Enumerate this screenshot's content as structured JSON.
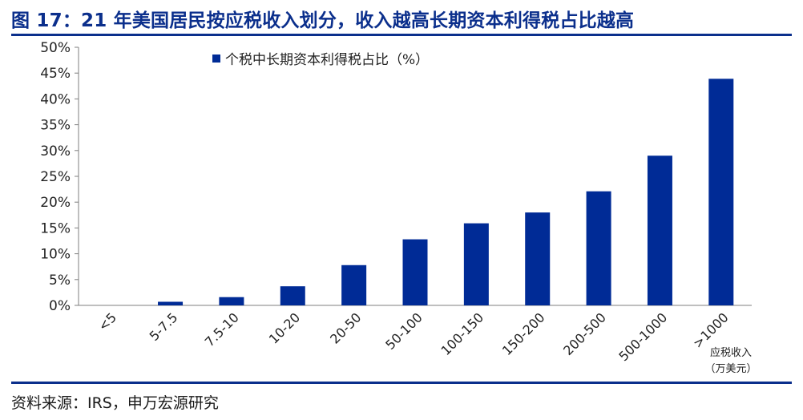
{
  "header": {
    "title": "图 17：21 年美国居民按应税收入划分，收入越高长期资本利得税占比越高"
  },
  "footer": {
    "source": "资料来源：IRS，申万宏源研究"
  },
  "chart_data": {
    "type": "bar",
    "categories": [
      "<5",
      "5-7.5",
      "7.5-10",
      "10-20",
      "20-50",
      "50-100",
      "100-150",
      "150-200",
      "200-500",
      "500-1000",
      ">1000"
    ],
    "series": [
      {
        "name": "个税中长期资本利得税占比（%）",
        "values": [
          0,
          0.7,
          1.6,
          3.7,
          7.8,
          12.8,
          15.9,
          18.0,
          22.1,
          29.0,
          43.9
        ],
        "color": "#002b96"
      }
    ],
    "xlabel": "应税收入（万美元）",
    "xlabel_lines": [
      "应税收入",
      "（万美元）"
    ],
    "ylabel": "",
    "ylim": [
      0,
      50
    ],
    "yticks": [
      0,
      5,
      10,
      15,
      20,
      25,
      30,
      35,
      40,
      45,
      50
    ],
    "ytick_labels": [
      "0%",
      "5%",
      "10%",
      "15%",
      "20%",
      "25%",
      "30%",
      "35%",
      "40%",
      "45%",
      "50%"
    ],
    "grid": false,
    "legend_position": "top-left"
  }
}
